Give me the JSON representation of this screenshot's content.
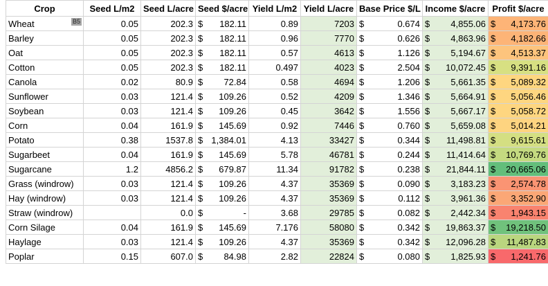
{
  "headers": [
    "Crop",
    "Seed L/m2",
    "Seed L/acre",
    "Seed $/acre",
    "Yield L/m2",
    "Yield L/acre",
    "Base Price $/L",
    "Income $/acre",
    "Profit $/acre"
  ],
  "cell_reference": "B5",
  "currency_symbol": "$",
  "profit_color_scale": {
    "low": "#f8696b",
    "mid": "#ffeb84",
    "high": "#63be7b"
  },
  "rows": [
    {
      "crop": "Wheat",
      "seed_l_m2": "0.05",
      "seed_l_acre": "202.3",
      "seed_cost": "182.11",
      "yield_l_m2": "0.89",
      "yield_l_acre": "7203",
      "base_price": "0.674",
      "income": "4,855.06",
      "profit": "4,173.76",
      "profit_color": "#fdb477"
    },
    {
      "crop": "Barley",
      "seed_l_m2": "0.05",
      "seed_l_acre": "202.3",
      "seed_cost": "182.11",
      "yield_l_m2": "0.96",
      "yield_l_acre": "7770",
      "base_price": "0.626",
      "income": "4,863.96",
      "profit": "4,182.66",
      "profit_color": "#fdb477"
    },
    {
      "crop": "Oat",
      "seed_l_m2": "0.05",
      "seed_l_acre": "202.3",
      "seed_cost": "182.11",
      "yield_l_m2": "0.57",
      "yield_l_acre": "4613",
      "base_price": "1.126",
      "income": "5,194.67",
      "profit": "4,513.37",
      "profit_color": "#fdc47d"
    },
    {
      "crop": "Cotton",
      "seed_l_m2": "0.05",
      "seed_l_acre": "202.3",
      "seed_cost": "182.11",
      "yield_l_m2": "0.497",
      "yield_l_acre": "4023",
      "base_price": "2.504",
      "income": "10,072.45",
      "profit": "9,391.16",
      "profit_color": "#d7e082"
    },
    {
      "crop": "Canola",
      "seed_l_m2": "0.02",
      "seed_l_acre": "80.9",
      "seed_cost": "72.84",
      "yield_l_m2": "0.58",
      "yield_l_acre": "4694",
      "base_price": "1.206",
      "income": "5,661.35",
      "profit": "5,089.32",
      "profit_color": "#fed680"
    },
    {
      "crop": "Sunflower",
      "seed_l_m2": "0.03",
      "seed_l_acre": "121.4",
      "seed_cost": "109.26",
      "yield_l_m2": "0.52",
      "yield_l_acre": "4209",
      "base_price": "1.346",
      "income": "5,664.91",
      "profit": "5,056.46",
      "profit_color": "#fed680"
    },
    {
      "crop": "Soybean",
      "seed_l_m2": "0.03",
      "seed_l_acre": "121.4",
      "seed_cost": "109.26",
      "yield_l_m2": "0.45",
      "yield_l_acre": "3642",
      "base_price": "1.556",
      "income": "5,667.17",
      "profit": "5,058.72",
      "profit_color": "#fed680"
    },
    {
      "crop": "Corn",
      "seed_l_m2": "0.04",
      "seed_l_acre": "161.9",
      "seed_cost": "145.69",
      "yield_l_m2": "0.92",
      "yield_l_acre": "7446",
      "base_price": "0.760",
      "income": "5,659.08",
      "profit": "5,014.21",
      "profit_color": "#fed480"
    },
    {
      "crop": "Potato",
      "seed_l_m2": "0.38",
      "seed_l_acre": "1537.8",
      "seed_cost": "1,384.01",
      "yield_l_m2": "4.13",
      "yield_l_acre": "33427",
      "base_price": "0.344",
      "income": "11,498.81",
      "profit": "9,615.61",
      "profit_color": "#d4df82"
    },
    {
      "crop": "Sugarbeet",
      "seed_l_m2": "0.04",
      "seed_l_acre": "161.9",
      "seed_cost": "145.69",
      "yield_l_m2": "5.78",
      "yield_l_acre": "46781",
      "base_price": "0.244",
      "income": "11,414.64",
      "profit": "10,769.76",
      "profit_color": "#c4da80"
    },
    {
      "crop": "Sugarcane",
      "seed_l_m2": "1.2",
      "seed_l_acre": "4856.2",
      "seed_cost": "679.87",
      "yield_l_m2": "11.34",
      "yield_l_acre": "91782",
      "base_price": "0.238",
      "income": "21,844.11",
      "profit": "20,665.06",
      "profit_color": "#63be7b"
    },
    {
      "crop": "Grass (windrow)",
      "seed_l_m2": "0.03",
      "seed_l_acre": "121.4",
      "seed_cost": "109.26",
      "yield_l_m2": "4.37",
      "yield_l_acre": "35369",
      "base_price": "0.090",
      "income": "3,183.23",
      "profit": "2,574.78",
      "profit_color": "#fa9473"
    },
    {
      "crop": "Hay (windrow)",
      "seed_l_m2": "0.03",
      "seed_l_acre": "121.4",
      "seed_cost": "109.26",
      "yield_l_m2": "4.37",
      "yield_l_acre": "35369",
      "base_price": "0.112",
      "income": "3,961.36",
      "profit": "3,352.90",
      "profit_color": "#fba776"
    },
    {
      "crop": "Straw (windrow)",
      "seed_l_m2": "",
      "seed_l_acre": "0.0",
      "seed_cost": "-",
      "yield_l_m2": "3.68",
      "yield_l_acre": "29785",
      "base_price": "0.082",
      "income": "2,442.34",
      "profit": "1,943.15",
      "profit_color": "#f9836f"
    },
    {
      "crop": "Corn Silage",
      "seed_l_m2": "0.04",
      "seed_l_acre": "161.9",
      "seed_cost": "145.69",
      "yield_l_m2": "7.176",
      "yield_l_acre": "58080",
      "base_price": "0.342",
      "income": "19,863.37",
      "profit": "19,218.50",
      "profit_color": "#70c27c"
    },
    {
      "crop": "Haylage",
      "seed_l_m2": "0.03",
      "seed_l_acre": "121.4",
      "seed_cost": "109.26",
      "yield_l_m2": "4.37",
      "yield_l_acre": "35369",
      "base_price": "0.342",
      "income": "12,096.28",
      "profit": "11,487.83",
      "profit_color": "#bad67f"
    },
    {
      "crop": "Poplar",
      "seed_l_m2": "0.15",
      "seed_l_acre": "607.0",
      "seed_cost": "84.98",
      "yield_l_m2": "2.82",
      "yield_l_acre": "22824",
      "base_price": "0.080",
      "income": "1,825.93",
      "profit": "1,241.76",
      "profit_color": "#f8696b"
    }
  ]
}
